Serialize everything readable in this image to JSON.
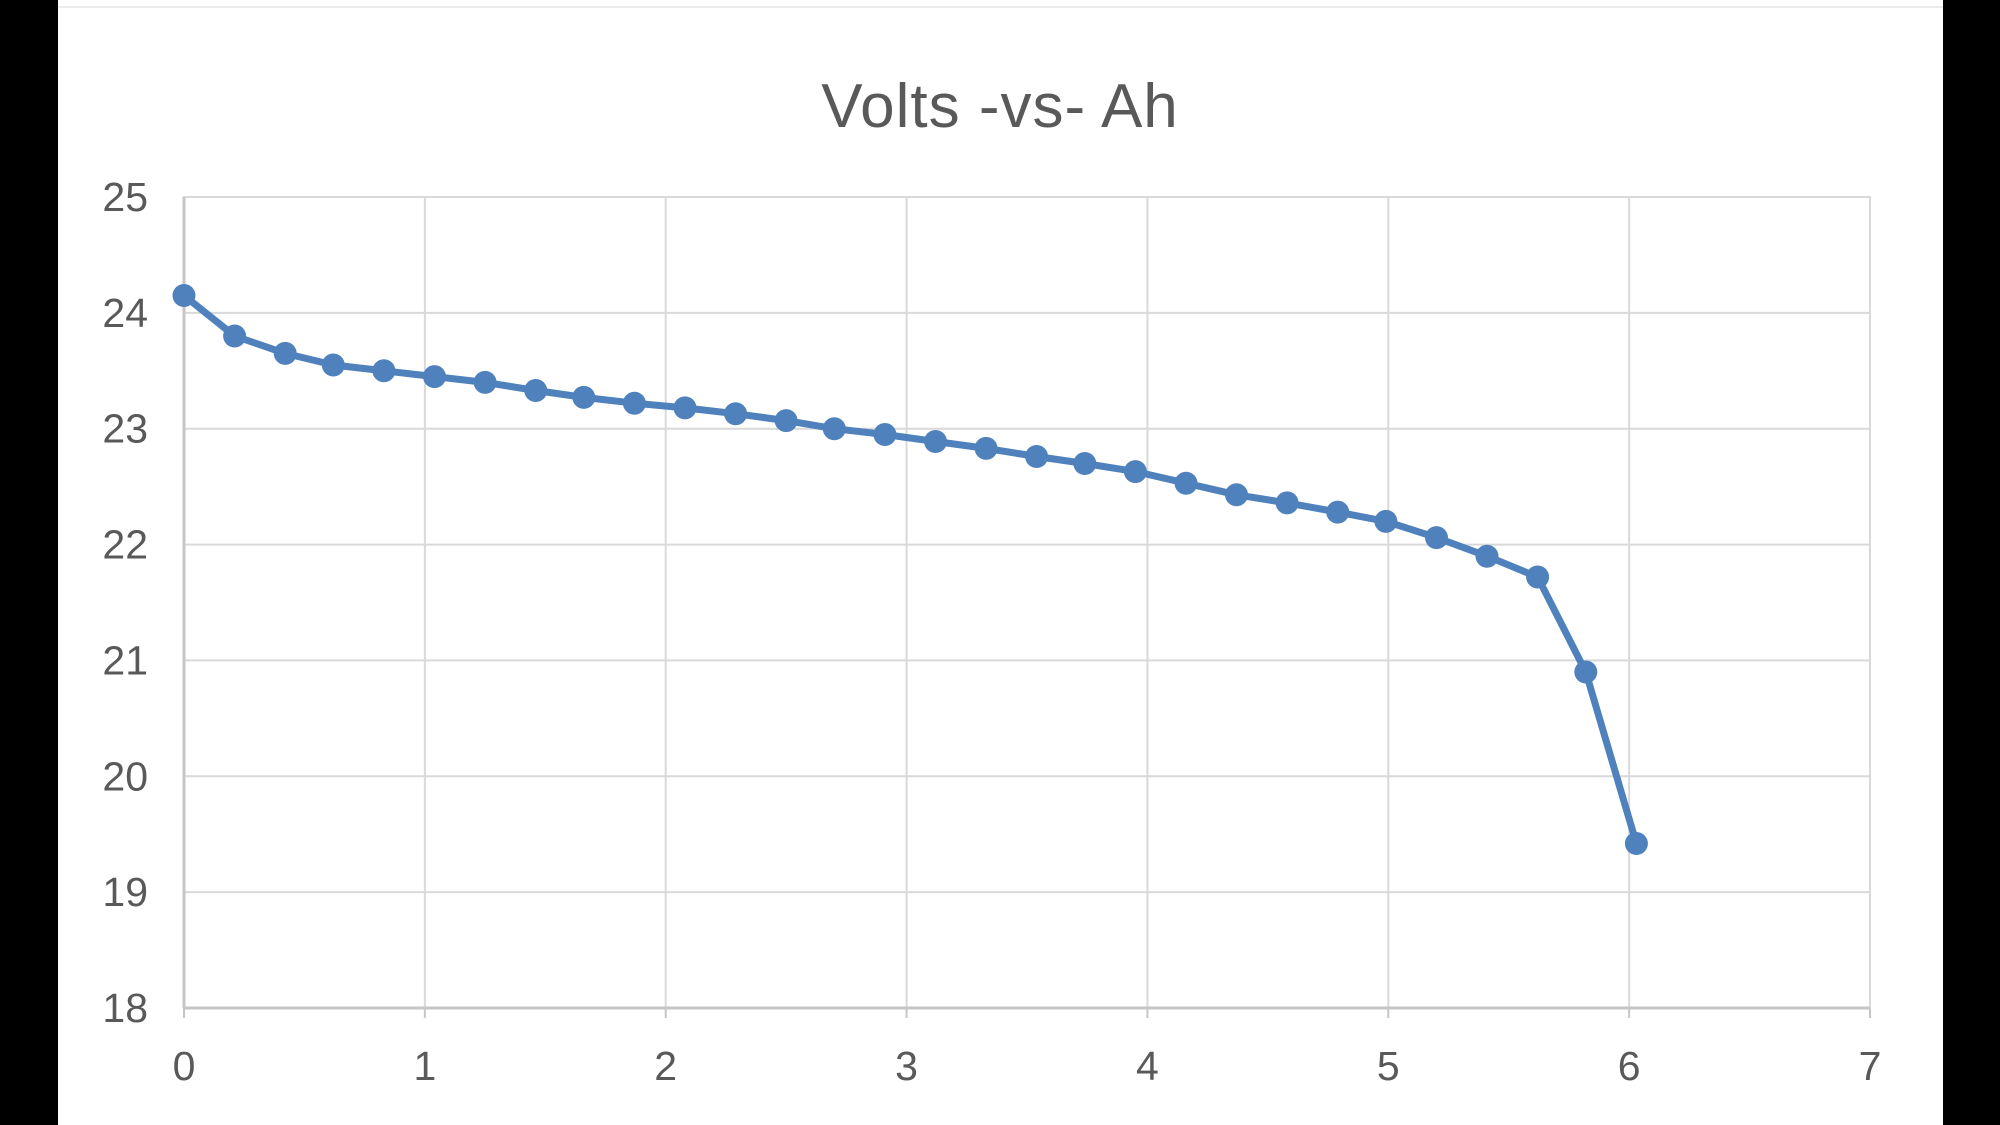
{
  "window": {
    "letterbox_color": "#000000",
    "canvas_color": "#ffffff"
  },
  "chart_data": {
    "type": "line",
    "title": "Volts -vs- Ah",
    "xlabel": "",
    "ylabel": "",
    "xlim": [
      0,
      7
    ],
    "ylim": [
      18,
      25
    ],
    "x_ticks": [
      0,
      1,
      2,
      3,
      4,
      5,
      6,
      7
    ],
    "y_ticks": [
      18,
      19,
      20,
      21,
      22,
      23,
      24,
      25
    ],
    "grid": true,
    "legend": "none",
    "series": [
      {
        "name": "Volts",
        "marker": "circle",
        "color": "#4f81bd",
        "points": [
          [
            0.0,
            24.15
          ],
          [
            0.21,
            23.8
          ],
          [
            0.42,
            23.65
          ],
          [
            0.62,
            23.55
          ],
          [
            0.83,
            23.5
          ],
          [
            1.04,
            23.45
          ],
          [
            1.25,
            23.4
          ],
          [
            1.46,
            23.33
          ],
          [
            1.66,
            23.27
          ],
          [
            1.87,
            23.22
          ],
          [
            2.08,
            23.18
          ],
          [
            2.29,
            23.13
          ],
          [
            2.5,
            23.07
          ],
          [
            2.7,
            23.0
          ],
          [
            2.91,
            22.95
          ],
          [
            3.12,
            22.89
          ],
          [
            3.33,
            22.83
          ],
          [
            3.54,
            22.76
          ],
          [
            3.74,
            22.7
          ],
          [
            3.95,
            22.63
          ],
          [
            4.16,
            22.53
          ],
          [
            4.37,
            22.43
          ],
          [
            4.58,
            22.36
          ],
          [
            4.79,
            22.28
          ],
          [
            4.99,
            22.2
          ],
          [
            5.2,
            22.06
          ],
          [
            5.41,
            21.9
          ],
          [
            5.62,
            21.72
          ],
          [
            5.82,
            20.9
          ],
          [
            6.03,
            19.42
          ]
        ]
      }
    ],
    "colors": {
      "title": "#595959",
      "tick_labels": "#595959",
      "gridline": "#d9d9d9",
      "axis_line": "#c6c6c6",
      "plot_border": "#d9d9d9",
      "series": "#4f81bd"
    }
  }
}
